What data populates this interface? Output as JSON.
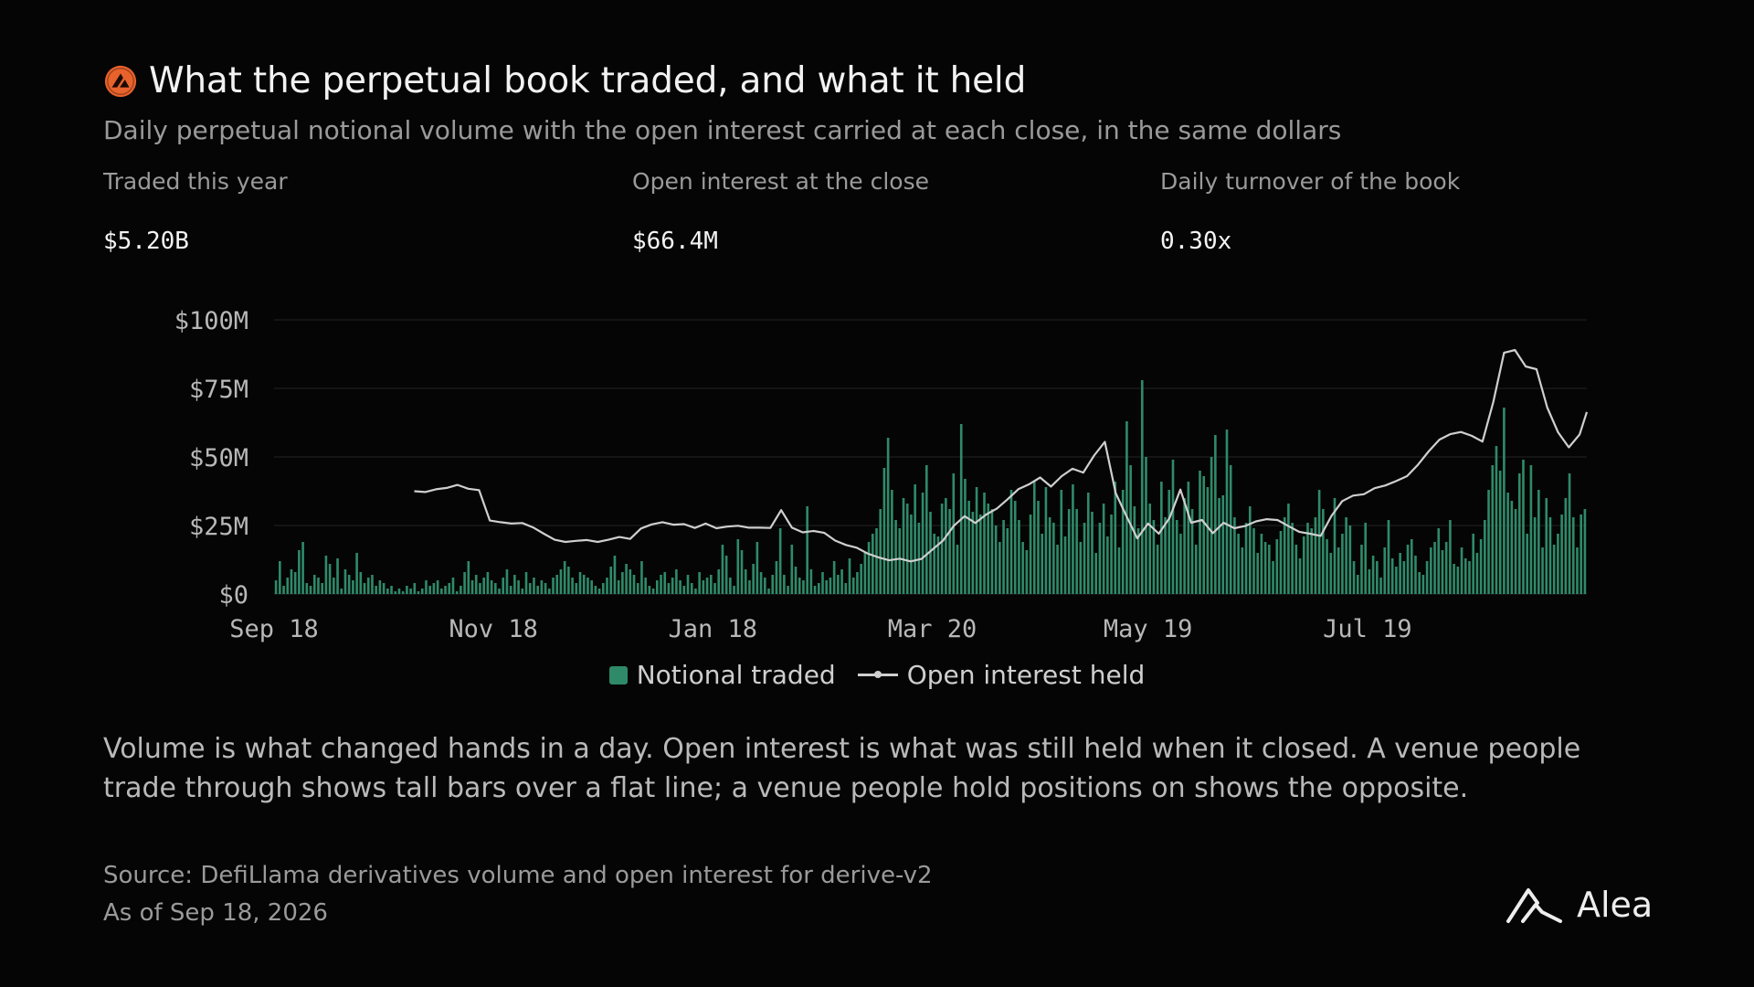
{
  "header": {
    "title": "What the perpetual book traded, and what it held",
    "subtitle": "Daily perpetual notional volume with the open interest carried at each close, in the same dollars",
    "badge_icon": "protocol-logo-icon",
    "badge_color": "#e8622c"
  },
  "stats": [
    {
      "label": "Traded this year",
      "value": "$5.20B"
    },
    {
      "label": "Open interest at the close",
      "value": "$66.4M"
    },
    {
      "label": "Daily turnover of the book",
      "value": "0.30x"
    }
  ],
  "chart_data": {
    "type": "bar",
    "x_axis": {
      "type": "date",
      "start": "Sep 18",
      "end": "Sep 18",
      "tick_labels": [
        "Sep 18",
        "Nov 18",
        "Jan 18",
        "Mar 20",
        "May 19",
        "Jul 19"
      ]
    },
    "y_axis": {
      "ylim": [
        0,
        100
      ],
      "unit": "$M",
      "tick_labels": [
        "$0",
        "$25M",
        "$50M",
        "$75M",
        "$100M"
      ],
      "grid": true
    },
    "legend_position": "bottom-center",
    "series": [
      {
        "name": "Notional traded",
        "kind": "bar",
        "color": "#2f8a6a",
        "cadence": "daily",
        "values": [
          5,
          12,
          3,
          6,
          9,
          8,
          16,
          19,
          4,
          3,
          7,
          6,
          4,
          14,
          11,
          6,
          13,
          2,
          9,
          7,
          5,
          15,
          8,
          4,
          6,
          7,
          3,
          5,
          4,
          2,
          3,
          1,
          2,
          1,
          3,
          2,
          4,
          1,
          2,
          5,
          3,
          4,
          5,
          2,
          3,
          4,
          6,
          1,
          3,
          8,
          12,
          5,
          7,
          4,
          6,
          8,
          5,
          4,
          2,
          6,
          9,
          3,
          7,
          5,
          2,
          8,
          4,
          6,
          3,
          5,
          4,
          2,
          6,
          7,
          9,
          12,
          10,
          6,
          4,
          8,
          7,
          6,
          5,
          3,
          2,
          4,
          6,
          10,
          14,
          5,
          8,
          11,
          9,
          7,
          4,
          12,
          6,
          3,
          2,
          5,
          7,
          8,
          4,
          6,
          9,
          5,
          3,
          7,
          4,
          2,
          8,
          5,
          6,
          7,
          4,
          9,
          18,
          14,
          6,
          3,
          20,
          16,
          9,
          5,
          11,
          19,
          8,
          6,
          2,
          7,
          12,
          24,
          7,
          3,
          18,
          10,
          6,
          5,
          32,
          9,
          3,
          4,
          8,
          5,
          6,
          12,
          7,
          9,
          4,
          13,
          6,
          8,
          11,
          15,
          19,
          22,
          24,
          31,
          46,
          57,
          38,
          27,
          24,
          35,
          33,
          29,
          40,
          26,
          37,
          47,
          30,
          22,
          21,
          33,
          35,
          31,
          44,
          18,
          62,
          42,
          34,
          30,
          39,
          29,
          37,
          33,
          31,
          25,
          19,
          27,
          24,
          38,
          34,
          27,
          19,
          16,
          29,
          41,
          34,
          22,
          39,
          28,
          26,
          18,
          38,
          21,
          31,
          40,
          31,
          19,
          26,
          37,
          30,
          15,
          26,
          33,
          21,
          29,
          41,
          17,
          38,
          63,
          47,
          32,
          24,
          78,
          50,
          33,
          27,
          18,
          41,
          28,
          38,
          49,
          27,
          22,
          35,
          41,
          31,
          18,
          45,
          43,
          39,
          50,
          58,
          35,
          36,
          60,
          47,
          28,
          22,
          17,
          26,
          32,
          24,
          15,
          22,
          19,
          18,
          12,
          20,
          23,
          28,
          33,
          26,
          18,
          13,
          21,
          26,
          24,
          28,
          38,
          31,
          20,
          15,
          35,
          17,
          22,
          28,
          25,
          12,
          7,
          18,
          26,
          9,
          14,
          12,
          6,
          17,
          27,
          13,
          10,
          15,
          12,
          18,
          20,
          14,
          8,
          7,
          12,
          17,
          19,
          24,
          16,
          19,
          27,
          11,
          10,
          17,
          13,
          12,
          22,
          15,
          20,
          27,
          38,
          47,
          54,
          45,
          68,
          37,
          34,
          31,
          44,
          49,
          22,
          47,
          28,
          38,
          17,
          35,
          28,
          18,
          22,
          29,
          35,
          44,
          28,
          17,
          29,
          31
        ],
        "values_unit": "$M"
      },
      {
        "name": "Open interest held",
        "kind": "line",
        "color": "#cfcfcf",
        "cadence": "daily",
        "values_unit": "$M",
        "points": [
          [
            "Oct 27",
            37.5
          ],
          [
            "Oct 30",
            37.2
          ],
          [
            "Nov 2",
            38.2
          ],
          [
            "Nov 5",
            38.7
          ],
          [
            "Nov 8",
            39.8
          ],
          [
            "Nov 11",
            38.4
          ],
          [
            "Nov 14",
            37.9
          ],
          [
            "Nov 17",
            26.8
          ],
          [
            "Nov 20",
            26.2
          ],
          [
            "Nov 23",
            25.7
          ],
          [
            "Nov 26",
            25.9
          ],
          [
            "Nov 29",
            24.3
          ],
          [
            "Dec 2",
            22.0
          ],
          [
            "Dec 5",
            19.8
          ],
          [
            "Dec 8",
            19.0
          ],
          [
            "Dec 11",
            19.4
          ],
          [
            "Dec 14",
            19.7
          ],
          [
            "Dec 17",
            19.0
          ],
          [
            "Dec 20",
            19.8
          ],
          [
            "Dec 23",
            20.8
          ],
          [
            "Dec 26",
            20.1
          ],
          [
            "Dec 29",
            23.9
          ],
          [
            "Jan 1",
            25.4
          ],
          [
            "Jan 4",
            26.2
          ],
          [
            "Jan 7",
            25.3
          ],
          [
            "Jan 10",
            25.5
          ],
          [
            "Jan 13",
            24.1
          ],
          [
            "Jan 16",
            25.7
          ],
          [
            "Jan 19",
            24.0
          ],
          [
            "Jan 22",
            24.6
          ],
          [
            "Jan 25",
            24.9
          ],
          [
            "Jan 28",
            24.2
          ],
          [
            "Jan 31",
            24.2
          ],
          [
            "Feb 3",
            24.1
          ],
          [
            "Feb 6",
            30.6
          ],
          [
            "Feb 9",
            24.2
          ],
          [
            "Feb 12",
            22.5
          ],
          [
            "Feb 15",
            23.0
          ],
          [
            "Feb 18",
            22.3
          ],
          [
            "Feb 21",
            19.5
          ],
          [
            "Feb 24",
            17.9
          ],
          [
            "Feb 27",
            16.9
          ],
          [
            "Mar 2",
            14.8
          ],
          [
            "Mar 5",
            13.4
          ],
          [
            "Mar 8",
            12.3
          ],
          [
            "Mar 11",
            12.9
          ],
          [
            "Mar 14",
            11.9
          ],
          [
            "Mar 17",
            12.8
          ],
          [
            "Mar 20",
            16.2
          ],
          [
            "Mar 23",
            19.5
          ],
          [
            "Mar 26",
            24.9
          ],
          [
            "Mar 29",
            28.4
          ],
          [
            "Apr 1",
            25.9
          ],
          [
            "Apr 4",
            29.0
          ],
          [
            "Apr 7",
            31.2
          ],
          [
            "Apr 10",
            34.6
          ],
          [
            "Apr 13",
            38.3
          ],
          [
            "Apr 16",
            40.1
          ],
          [
            "Apr 19",
            42.5
          ],
          [
            "Apr 22",
            39.2
          ],
          [
            "Apr 25",
            43.0
          ],
          [
            "Apr 28",
            45.7
          ],
          [
            "May 1",
            44.3
          ],
          [
            "May 4",
            50.5
          ],
          [
            "May 7",
            55.5
          ],
          [
            "May 10",
            36.8
          ],
          [
            "May 13",
            28.4
          ],
          [
            "May 16",
            20.3
          ],
          [
            "May 19",
            25.7
          ],
          [
            "May 22",
            22.0
          ],
          [
            "May 25",
            27.8
          ],
          [
            "May 28",
            38.1
          ],
          [
            "May 31",
            26.0
          ],
          [
            "Jun 3",
            27.0
          ],
          [
            "Jun 6",
            22.2
          ],
          [
            "Jun 9",
            26.0
          ],
          [
            "Jun 12",
            24.0
          ],
          [
            "Jun 15",
            24.8
          ],
          [
            "Jun 18",
            26.5
          ],
          [
            "Jun 21",
            27.3
          ],
          [
            "Jun 24",
            27.0
          ],
          [
            "Jun 27",
            24.8
          ],
          [
            "Jun 30",
            22.7
          ],
          [
            "Jul 3",
            22.0
          ],
          [
            "Jul 6",
            21.2
          ],
          [
            "Jul 9",
            28.5
          ],
          [
            "Jul 12",
            33.9
          ],
          [
            "Jul 15",
            35.9
          ],
          [
            "Jul 18",
            36.4
          ],
          [
            "Jul 21",
            38.6
          ],
          [
            "Jul 24",
            39.6
          ],
          [
            "Jul 27",
            41.2
          ],
          [
            "Jul 30",
            43.0
          ],
          [
            "Aug 2",
            47.1
          ],
          [
            "Aug 5",
            52.0
          ],
          [
            "Aug 8",
            56.3
          ],
          [
            "Aug 11",
            58.3
          ],
          [
            "Aug 14",
            59.1
          ],
          [
            "Aug 17",
            57.7
          ],
          [
            "Aug 20",
            55.6
          ],
          [
            "Aug 23",
            70.0
          ],
          [
            "Aug 26",
            88.0
          ],
          [
            "Aug 29",
            89.0
          ],
          [
            "Sep 1",
            83.0
          ],
          [
            "Sep 4",
            82.0
          ],
          [
            "Sep 7",
            68.0
          ],
          [
            "Sep 10",
            59.0
          ],
          [
            "Sep 13",
            53.5
          ],
          [
            "Sep 16",
            58.2
          ],
          [
            "Sep 18",
            66.4
          ]
        ]
      }
    ]
  },
  "body": {
    "text": "Volume is what changed hands in a day. Open interest is what was still held when it closed. A venue people trade through shows tall bars over a flat line; a venue people hold positions on shows the opposite."
  },
  "footer": {
    "source": "Source: DefiLlama derivatives volume and open interest for derive-v2",
    "as_of": "As of Sep 18, 2026",
    "logo_text": "Alea",
    "logo_icon": "alea-logo-icon"
  },
  "colors": {
    "background": "#050505",
    "bar": "#2f8a6a",
    "line": "#cfcfcf",
    "grid": "#222222",
    "tick": "#b8b8b8"
  }
}
